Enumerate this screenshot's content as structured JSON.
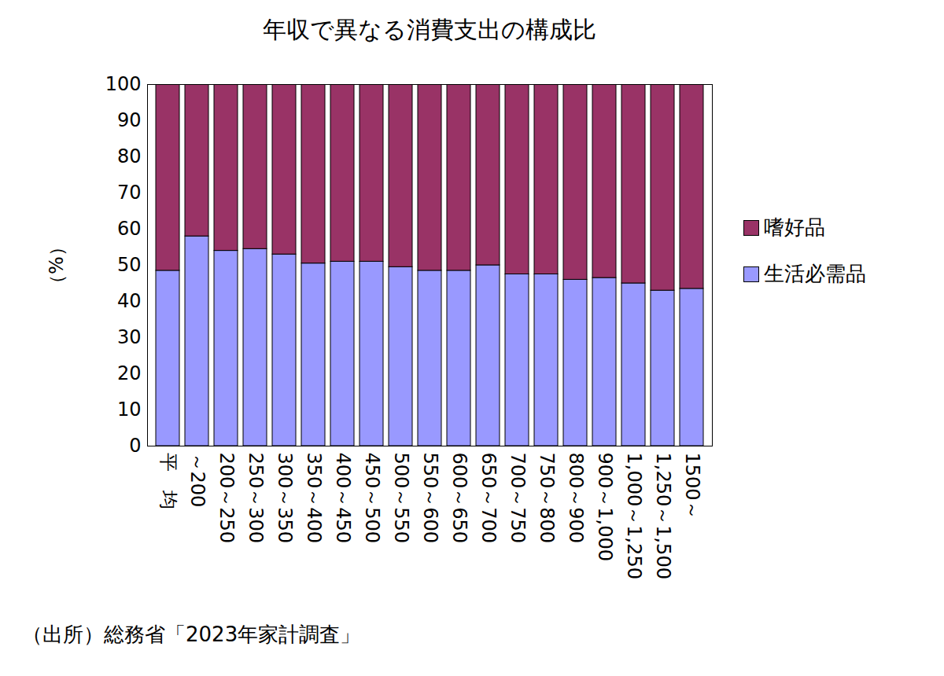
{
  "chart_data": {
    "type": "bar",
    "title": "年収で異なる消費支出の構成比",
    "ylabel": "（%）",
    "caption": "（出所）総務省「2023年家計調査」",
    "categories": [
      "平　均",
      "～200",
      "200～250",
      "250～300",
      "300～350",
      "350～400",
      "400～450",
      "450～500",
      "500～550",
      "550～600",
      "600～650",
      "650～700",
      "700～750",
      "750～800",
      "800～900",
      "900～1,000",
      "1,000～1,250",
      "1,250～1,500",
      "1500～"
    ],
    "series": [
      {
        "name": "生活必需品",
        "color": "#9999ff",
        "values": [
          48.5,
          58,
          54,
          54.5,
          53,
          50.5,
          51,
          51,
          49.5,
          48.5,
          48.5,
          50,
          47.5,
          47.5,
          46,
          46.5,
          45,
          43,
          43.5
        ]
      },
      {
        "name": "嗜好品",
        "color": "#993366",
        "values": [
          51.5,
          42,
          46,
          45.5,
          47,
          49.5,
          49,
          49,
          50.5,
          51.5,
          51.5,
          50,
          52.5,
          52.5,
          54,
          53.5,
          55,
          57,
          56.5
        ]
      }
    ],
    "ylim": [
      0,
      100
    ],
    "yticks": [
      0,
      10,
      20,
      30,
      40,
      50,
      60,
      70,
      80,
      90,
      100
    ],
    "stacked": true,
    "legend": "right"
  }
}
